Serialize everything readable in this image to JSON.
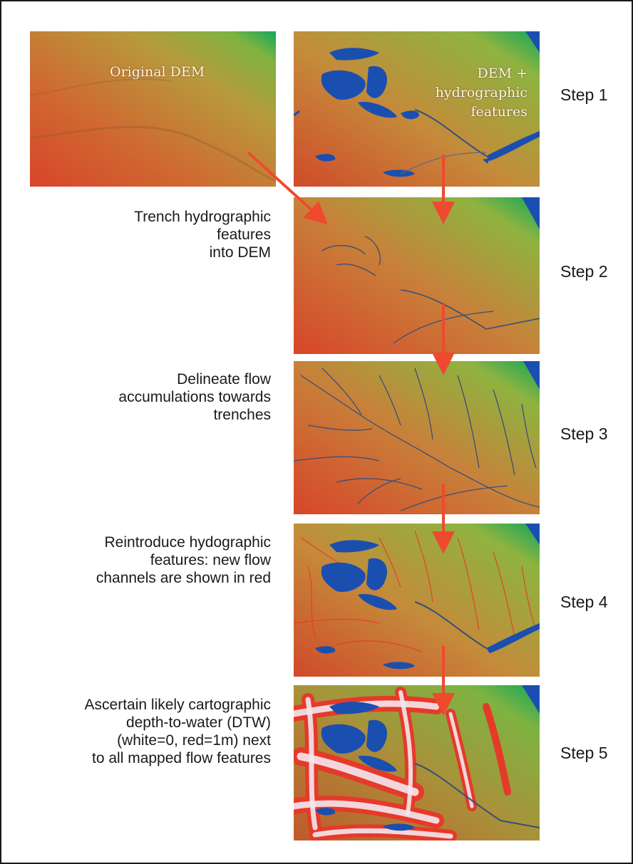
{
  "panels": {
    "original": {
      "label": "Original DEM"
    },
    "step1": {
      "label_lines": [
        "DEM +",
        "hydrographic",
        "features"
      ]
    }
  },
  "steps": [
    {
      "label": "Step 1",
      "description": []
    },
    {
      "label": "Step 2",
      "description": [
        "Trench hydrographic",
        "features",
        "into DEM"
      ]
    },
    {
      "label": "Step 3",
      "description": [
        "Delineate flow",
        "accumulations towards",
        "trenches"
      ]
    },
    {
      "label": "Step 4",
      "description": [
        "Reintroduce hydographic",
        "features: new flow",
        "channels are shown in red"
      ]
    },
    {
      "label": "Step 5",
      "description": [
        "Ascertain likely cartographic",
        "depth-to-water (DTW)",
        "(white=0, red=1m) next",
        "to all mapped flow features"
      ]
    }
  ],
  "colors": {
    "terrain_high": "#d8452a",
    "terrain_mid": "#c98a3a",
    "terrain_low": "#7fb341",
    "terrain_edge": "#11a85a",
    "water": "#1a4fb0",
    "stream": "#3a4e78",
    "new_channel": "#e63a2c",
    "dtw_zone": "#e53a2a",
    "arrow": "#ee4a2f"
  }
}
